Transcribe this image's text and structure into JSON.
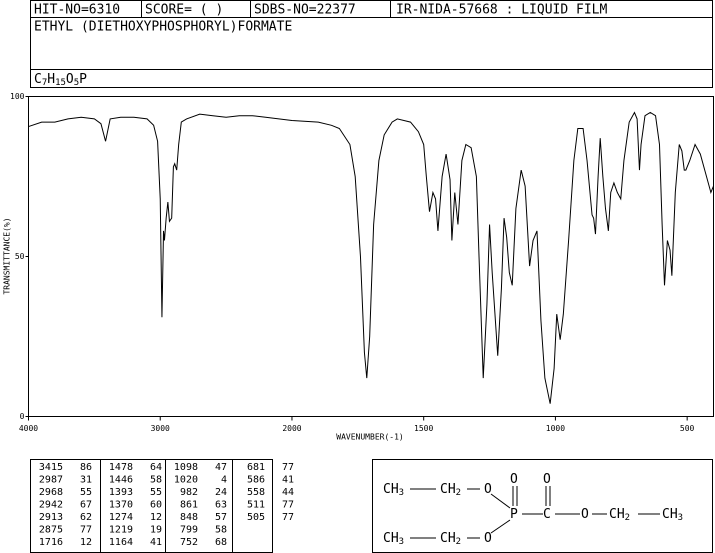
{
  "header": {
    "hit_no": "HIT-NO=6310",
    "score": "SCORE=  (   )",
    "sdbs_no": "SDBS-NO=22377",
    "method": "IR-NIDA-57668 : LIQUID FILM",
    "name": "ETHYL (DIETHOXYPHOSPHORYL)FORMATE",
    "formula": "C7H15O5P"
  },
  "chart_data": {
    "type": "line",
    "xlabel": "WAVENUMBER(-1)",
    "ylabel": "TRANSMITTANCE(%)",
    "xlim": [
      4000,
      400
    ],
    "x_scale_break": 2000,
    "xticks": [
      4000,
      3000,
      2000,
      1500,
      1000,
      500
    ],
    "ylim": [
      0,
      100
    ],
    "yticks": [
      0,
      50,
      100
    ],
    "color": "#000000",
    "x": [
      4000,
      3900,
      3800,
      3700,
      3600,
      3500,
      3450,
      3415,
      3380,
      3300,
      3200,
      3100,
      3050,
      3020,
      3000,
      2987,
      2975,
      2968,
      2955,
      2942,
      2930,
      2913,
      2900,
      2890,
      2875,
      2860,
      2840,
      2800,
      2700,
      2600,
      2500,
      2400,
      2300,
      2200,
      2100,
      2000,
      1900,
      1850,
      1820,
      1780,
      1760,
      1740,
      1725,
      1716,
      1705,
      1690,
      1670,
      1650,
      1620,
      1600,
      1550,
      1520,
      1500,
      1490,
      1478,
      1465,
      1455,
      1446,
      1430,
      1415,
      1400,
      1393,
      1382,
      1370,
      1355,
      1340,
      1320,
      1300,
      1290,
      1274,
      1260,
      1250,
      1240,
      1219,
      1205,
      1195,
      1185,
      1175,
      1164,
      1150,
      1130,
      1115,
      1098,
      1085,
      1070,
      1055,
      1040,
      1020,
      1005,
      995,
      982,
      970,
      950,
      930,
      915,
      895,
      880,
      861,
      855,
      848,
      838,
      830,
      820,
      810,
      799,
      790,
      778,
      765,
      752,
      740,
      720,
      700,
      690,
      681,
      675,
      660,
      640,
      620,
      605,
      595,
      586,
      575,
      565,
      558,
      545,
      530,
      520,
      511,
      505,
      490,
      470,
      450,
      430,
      410,
      400
    ],
    "values": [
      90.6,
      92,
      92,
      93,
      93.5,
      93,
      91.5,
      86,
      93,
      93.5,
      93.5,
      93,
      91,
      86,
      68,
      31,
      58,
      55,
      62,
      67,
      61,
      62,
      78,
      79,
      77,
      85,
      92,
      93,
      94.5,
      94,
      93.5,
      94,
      94,
      93.5,
      93,
      92.5,
      92,
      91,
      90,
      85,
      75,
      50,
      20,
      12,
      25,
      60,
      80,
      88,
      92,
      93,
      92,
      89,
      85,
      75,
      64,
      70,
      68,
      58,
      75,
      82,
      74,
      55,
      70,
      60,
      80,
      85,
      84,
      75,
      50,
      12,
      35,
      60,
      45,
      19,
      40,
      62,
      56,
      45,
      41,
      65,
      77,
      72,
      47,
      55,
      58,
      30,
      12,
      4,
      15,
      32,
      24,
      32,
      55,
      80,
      90,
      90,
      80,
      63,
      62,
      57,
      75,
      87,
      75,
      65,
      58,
      70,
      73,
      70,
      68,
      80,
      92,
      95,
      93,
      77,
      85,
      94,
      95,
      94,
      85,
      60,
      41,
      55,
      52,
      44,
      70,
      85,
      83,
      77,
      77,
      80,
      85,
      82,
      76,
      70,
      72
    ]
  },
  "peaks": [
    [
      3415,
      86
    ],
    [
      2987,
      31
    ],
    [
      2968,
      55
    ],
    [
      2942,
      67
    ],
    [
      2913,
      62
    ],
    [
      2875,
      77
    ],
    [
      1716,
      12
    ],
    [
      1478,
      64
    ],
    [
      1446,
      58
    ],
    [
      1393,
      55
    ],
    [
      1370,
      60
    ],
    [
      1274,
      12
    ],
    [
      1219,
      19
    ],
    [
      1164,
      41
    ],
    [
      1098,
      47
    ],
    [
      1020,
      4
    ],
    [
      982,
      24
    ],
    [
      861,
      63
    ],
    [
      848,
      57
    ],
    [
      799,
      58
    ],
    [
      752,
      68
    ],
    [
      681,
      77
    ],
    [
      586,
      41
    ],
    [
      558,
      44
    ],
    [
      511,
      77
    ],
    [
      505,
      77
    ]
  ],
  "structure": {
    "atoms": [
      "CH3",
      "CH2",
      "O",
      "P",
      "O",
      "C",
      "O",
      "O",
      "CH2",
      "CH3",
      "CH3",
      "CH2",
      "O"
    ]
  }
}
